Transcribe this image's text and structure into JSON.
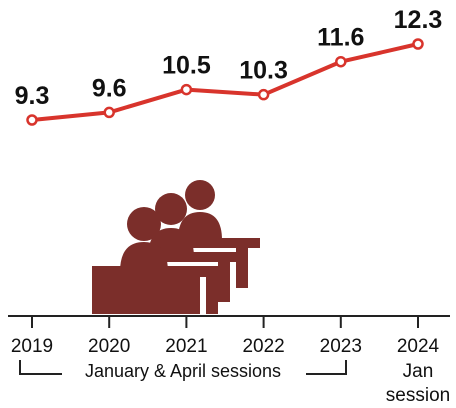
{
  "chart_data": {
    "type": "line",
    "x": [
      "2019",
      "2020",
      "2021",
      "2022",
      "2023",
      "2024"
    ],
    "x_sublabels": [
      "",
      "",
      "",
      "",
      "",
      "Jan"
    ],
    "x_sublabels2": [
      "",
      "",
      "",
      "",
      "",
      "session"
    ],
    "values": [
      9.3,
      9.6,
      10.5,
      10.3,
      11.6,
      12.3
    ],
    "value_labels": [
      "9.3",
      "9.6",
      "10.5",
      "10.3",
      "11.6",
      "12.3"
    ],
    "bracket_label": "January & April sessions",
    "title": "",
    "xlabel": "",
    "ylabel": "",
    "grid": false,
    "colors": {
      "line": "#d8342c",
      "marker_fill": "#ffffff",
      "icon": "#7b2e2a",
      "text": "#111111"
    },
    "icon": "students-at-desks-icon"
  }
}
